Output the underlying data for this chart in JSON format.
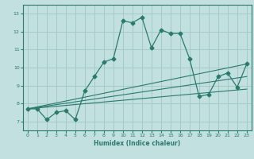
{
  "xlabel": "Humidex (Indice chaleur)",
  "xlim": [
    -0.5,
    23.5
  ],
  "ylim": [
    6.5,
    13.5
  ],
  "xticks": [
    0,
    1,
    2,
    3,
    4,
    5,
    6,
    7,
    8,
    9,
    10,
    11,
    12,
    13,
    14,
    15,
    16,
    17,
    18,
    19,
    20,
    21,
    22,
    23
  ],
  "yticks": [
    7,
    8,
    9,
    10,
    11,
    12,
    13
  ],
  "bg_color": "#c2e0df",
  "line_color": "#2a7a6e",
  "grid_color": "#9fc8c5",
  "main_line": {
    "x": [
      0,
      1,
      2,
      3,
      4,
      5,
      6,
      7,
      8,
      9,
      10,
      11,
      12,
      13,
      14,
      15,
      16,
      17,
      18,
      19,
      20,
      21,
      22,
      23
    ],
    "y": [
      7.7,
      7.7,
      7.1,
      7.5,
      7.6,
      7.1,
      8.7,
      9.5,
      10.3,
      10.5,
      12.6,
      12.5,
      12.8,
      11.1,
      12.1,
      11.9,
      11.9,
      10.5,
      8.4,
      8.5,
      9.5,
      9.7,
      8.9,
      10.2
    ]
  },
  "trend_lines": [
    {
      "x": [
        0,
        23
      ],
      "y": [
        7.7,
        10.2
      ]
    },
    {
      "x": [
        0,
        23
      ],
      "y": [
        7.7,
        9.5
      ]
    },
    {
      "x": [
        0,
        23
      ],
      "y": [
        7.7,
        8.8
      ]
    }
  ]
}
